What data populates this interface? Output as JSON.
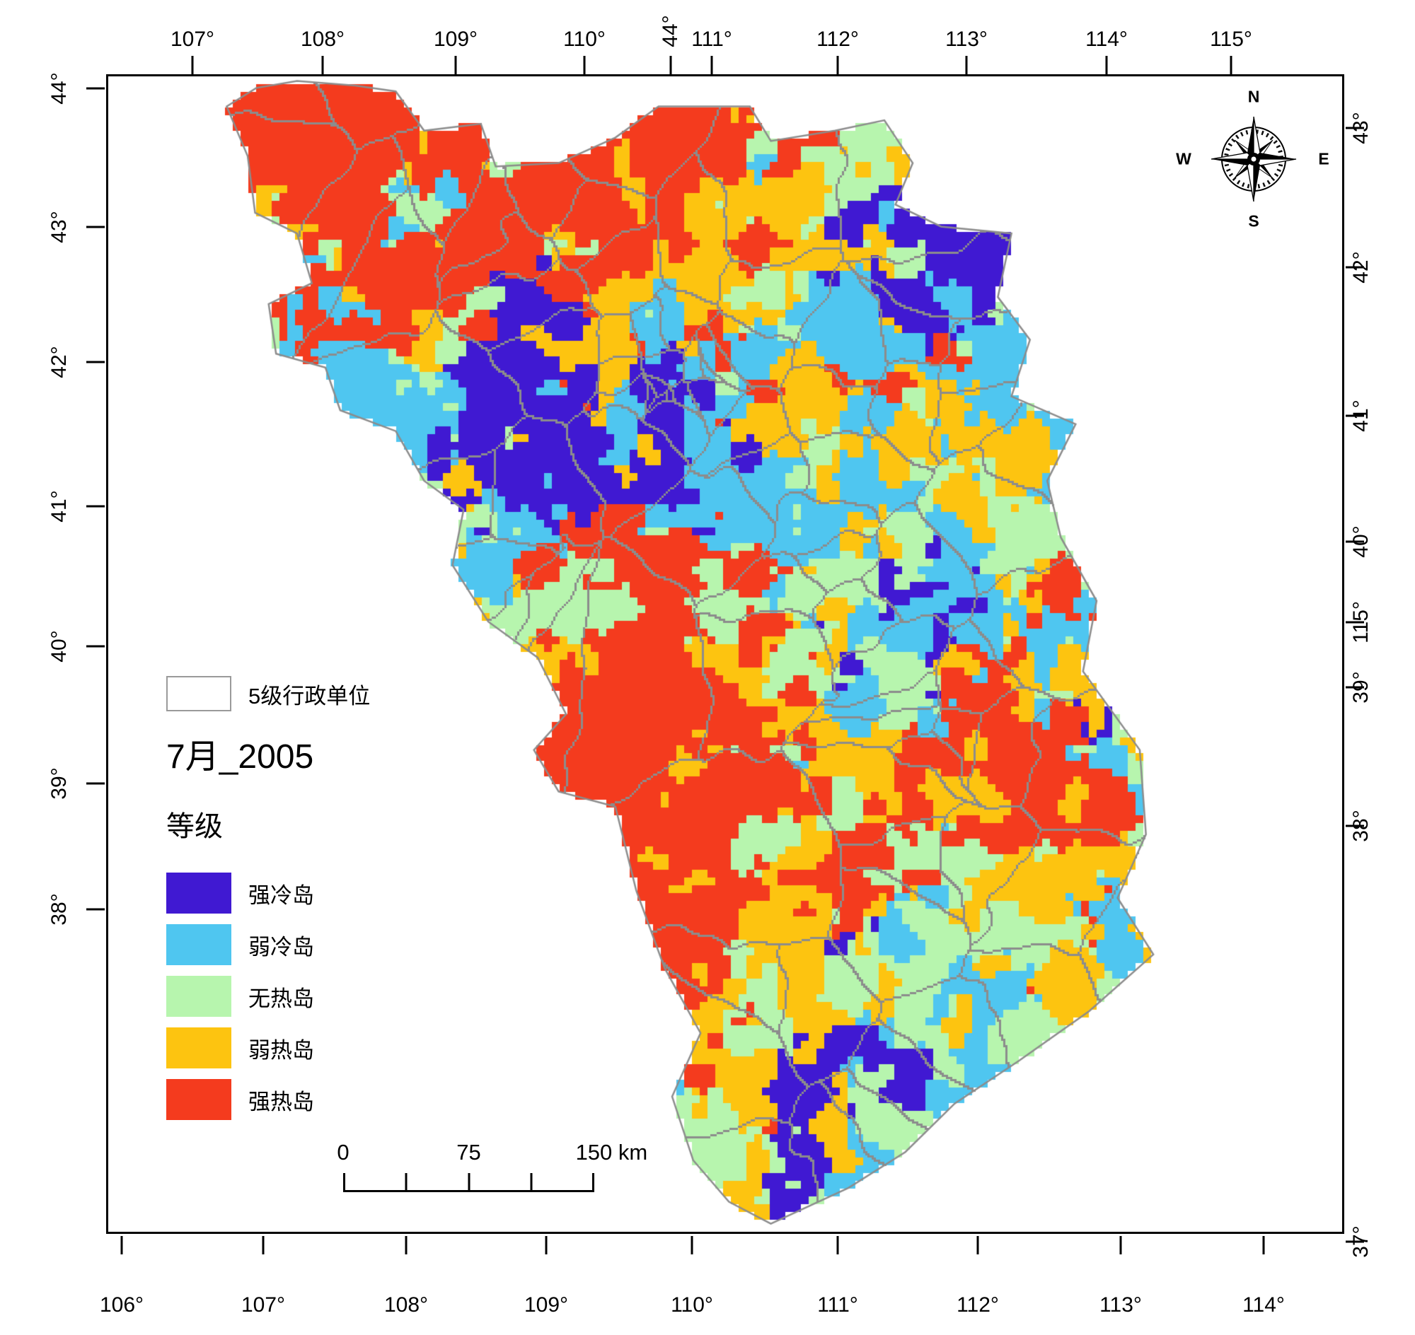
{
  "figure": {
    "background": "#ffffff",
    "frame_color": "#000000"
  },
  "north_arrow": {
    "n": "N",
    "e": "E",
    "s": "S",
    "w": "W"
  },
  "axes": {
    "top": [
      "107°",
      "108°",
      "109°",
      "110°",
      "44°",
      "111°",
      "112°",
      "113°",
      "114°",
      "115°"
    ],
    "bottom": [
      "106°",
      "107°",
      "108°",
      "109°",
      "110°",
      "111°",
      "112°",
      "113°",
      "114°"
    ],
    "left": [
      "44°",
      "43°",
      "42°",
      "41°",
      "40°",
      "39°",
      "38°"
    ],
    "right": [
      "43°",
      "42°",
      "41°",
      "40°",
      "115°",
      "39°",
      "38°",
      "37°"
    ]
  },
  "legend": {
    "admin_label": "5级行政单位",
    "title": "7月_2005",
    "subtitle": "等级",
    "classes": [
      {
        "label": "强冷岛",
        "color": "#4019d2"
      },
      {
        "label": "弱冷岛",
        "color": "#4fc6f0"
      },
      {
        "label": "无热岛",
        "color": "#b7f5ae"
      },
      {
        "label": "弱热岛",
        "color": "#fdc410"
      },
      {
        "label": "强热岛",
        "color": "#f43b1e"
      }
    ]
  },
  "scalebar": {
    "labels": [
      "0",
      "75",
      "150 km"
    ]
  },
  "map": {
    "boundary_color": "#8c8c8c",
    "base_weights": [
      0.5,
      1.0,
      1.25,
      1.2,
      0.85
    ],
    "outline": [
      [
        0.096,
        0.026
      ],
      [
        0.12,
        0.01
      ],
      [
        0.153,
        0.004
      ],
      [
        0.2,
        0.008
      ],
      [
        0.233,
        0.013
      ],
      [
        0.256,
        0.047
      ],
      [
        0.302,
        0.041
      ],
      [
        0.314,
        0.078
      ],
      [
        0.365,
        0.075
      ],
      [
        0.411,
        0.053
      ],
      [
        0.446,
        0.026
      ],
      [
        0.52,
        0.026
      ],
      [
        0.537,
        0.056
      ],
      [
        0.589,
        0.047
      ],
      [
        0.629,
        0.038
      ],
      [
        0.652,
        0.075
      ],
      [
        0.638,
        0.111
      ],
      [
        0.675,
        0.13
      ],
      [
        0.732,
        0.136
      ],
      [
        0.721,
        0.191
      ],
      [
        0.747,
        0.228
      ],
      [
        0.732,
        0.277
      ],
      [
        0.784,
        0.301
      ],
      [
        0.761,
        0.35
      ],
      [
        0.772,
        0.399
      ],
      [
        0.801,
        0.454
      ],
      [
        0.79,
        0.515
      ],
      [
        0.836,
        0.583
      ],
      [
        0.841,
        0.656
      ],
      [
        0.818,
        0.711
      ],
      [
        0.847,
        0.76
      ],
      [
        0.795,
        0.809
      ],
      [
        0.738,
        0.852
      ],
      [
        0.686,
        0.889
      ],
      [
        0.646,
        0.931
      ],
      [
        0.6,
        0.962
      ],
      [
        0.537,
        0.993
      ],
      [
        0.503,
        0.974
      ],
      [
        0.474,
        0.938
      ],
      [
        0.457,
        0.883
      ],
      [
        0.48,
        0.828
      ],
      [
        0.451,
        0.772
      ],
      [
        0.428,
        0.705
      ],
      [
        0.411,
        0.632
      ],
      [
        0.365,
        0.619
      ],
      [
        0.345,
        0.583
      ],
      [
        0.371,
        0.552
      ],
      [
        0.348,
        0.503
      ],
      [
        0.308,
        0.472
      ],
      [
        0.279,
        0.423
      ],
      [
        0.288,
        0.375
      ],
      [
        0.256,
        0.35
      ],
      [
        0.233,
        0.307
      ],
      [
        0.188,
        0.289
      ],
      [
        0.176,
        0.252
      ],
      [
        0.136,
        0.24
      ],
      [
        0.13,
        0.197
      ],
      [
        0.165,
        0.179
      ],
      [
        0.153,
        0.136
      ],
      [
        0.119,
        0.118
      ],
      [
        0.113,
        0.069
      ]
    ],
    "zones": [
      [
        0.25,
        0.07,
        0.15,
        4,
        2.2
      ],
      [
        0.17,
        0.05,
        0.1,
        4,
        5.0
      ],
      [
        0.1,
        0.11,
        0.06,
        4,
        4.0
      ],
      [
        0.27,
        0.09,
        0.09,
        4,
        4.2
      ],
      [
        0.37,
        0.06,
        0.08,
        4,
        3.8
      ],
      [
        0.33,
        0.14,
        0.07,
        4,
        3.0
      ],
      [
        0.45,
        0.11,
        0.07,
        4,
        2.8
      ],
      [
        0.52,
        0.06,
        0.05,
        4,
        2.4
      ],
      [
        0.22,
        0.17,
        0.06,
        4,
        2.4
      ],
      [
        0.3,
        0.18,
        0.1,
        3,
        2.2
      ],
      [
        0.45,
        0.16,
        0.09,
        3,
        2.4
      ],
      [
        0.56,
        0.12,
        0.07,
        3,
        2.0
      ],
      [
        0.14,
        0.18,
        0.05,
        3,
        2.0
      ],
      [
        0.56,
        0.05,
        0.045,
        2,
        2.2
      ],
      [
        0.63,
        0.09,
        0.05,
        2,
        1.8
      ],
      [
        0.38,
        0.19,
        0.05,
        2,
        1.6
      ],
      [
        0.52,
        0.18,
        0.06,
        2,
        1.7
      ],
      [
        0.19,
        0.23,
        0.06,
        1,
        2.1
      ],
      [
        0.16,
        0.21,
        0.05,
        2,
        1.9
      ],
      [
        0.665,
        0.165,
        0.055,
        0,
        6.0
      ],
      [
        0.71,
        0.145,
        0.035,
        0,
        4.0
      ],
      [
        0.6,
        0.2,
        0.05,
        1,
        2.4
      ],
      [
        0.71,
        0.21,
        0.05,
        1,
        2.4
      ],
      [
        0.745,
        0.26,
        0.04,
        1,
        2.0
      ],
      [
        0.64,
        0.25,
        0.04,
        4,
        2.2
      ],
      [
        0.57,
        0.295,
        0.035,
        4,
        2.0
      ],
      [
        0.66,
        0.32,
        0.06,
        3,
        2.2
      ],
      [
        0.71,
        0.3,
        0.05,
        2,
        1.8
      ],
      [
        0.335,
        0.245,
        0.05,
        0,
        4.5
      ],
      [
        0.405,
        0.27,
        0.05,
        0,
        4.5
      ],
      [
        0.295,
        0.325,
        0.05,
        0,
        4.2
      ],
      [
        0.255,
        0.375,
        0.045,
        0,
        4.5
      ],
      [
        0.44,
        0.335,
        0.055,
        0,
        4.2
      ],
      [
        0.505,
        0.35,
        0.04,
        0,
        3.2
      ],
      [
        0.375,
        0.3,
        0.04,
        0,
        3.0
      ],
      [
        0.35,
        0.295,
        0.09,
        1,
        2.3
      ],
      [
        0.245,
        0.28,
        0.06,
        1,
        2.2
      ],
      [
        0.475,
        0.3,
        0.07,
        1,
        2.0
      ],
      [
        0.555,
        0.385,
        0.06,
        1,
        2.4
      ],
      [
        0.61,
        0.345,
        0.05,
        1,
        2.0
      ],
      [
        0.3,
        0.42,
        0.05,
        1,
        2.0
      ],
      [
        0.375,
        0.4,
        0.07,
        2,
        2.3
      ],
      [
        0.495,
        0.42,
        0.07,
        2,
        2.1
      ],
      [
        0.285,
        0.215,
        0.05,
        2,
        1.7
      ],
      [
        0.555,
        0.44,
        0.05,
        2,
        2.0
      ],
      [
        0.425,
        0.215,
        0.06,
        3,
        2.1
      ],
      [
        0.53,
        0.27,
        0.05,
        3,
        1.8
      ],
      [
        0.33,
        0.36,
        0.05,
        3,
        1.6
      ],
      [
        0.455,
        0.255,
        0.022,
        4,
        2.6
      ],
      [
        0.49,
        0.235,
        0.018,
        4,
        2.0
      ],
      [
        0.52,
        0.3,
        0.03,
        4,
        1.8
      ],
      [
        0.405,
        0.455,
        0.065,
        4,
        4.2
      ],
      [
        0.465,
        0.5,
        0.065,
        4,
        4.6
      ],
      [
        0.415,
        0.555,
        0.055,
        4,
        4.2
      ],
      [
        0.375,
        0.605,
        0.05,
        4,
        3.6
      ],
      [
        0.525,
        0.55,
        0.045,
        4,
        3.0
      ],
      [
        0.495,
        0.445,
        0.04,
        4,
        3.0
      ],
      [
        0.345,
        0.5,
        0.07,
        3,
        2.5
      ],
      [
        0.53,
        0.465,
        0.06,
        3,
        2.2
      ],
      [
        0.465,
        0.6,
        0.06,
        3,
        2.2
      ],
      [
        0.56,
        0.6,
        0.05,
        3,
        2.0
      ],
      [
        0.585,
        0.5,
        0.05,
        2,
        2.0
      ],
      [
        0.625,
        0.565,
        0.06,
        2,
        2.2
      ],
      [
        0.31,
        0.455,
        0.045,
        2,
        1.8
      ],
      [
        0.63,
        0.465,
        0.042,
        0,
        5.0
      ],
      [
        0.665,
        0.515,
        0.045,
        1,
        2.5
      ],
      [
        0.6,
        0.43,
        0.045,
        1,
        2.0
      ],
      [
        0.685,
        0.47,
        0.035,
        1,
        2.0
      ],
      [
        0.72,
        0.595,
        0.045,
        4,
        3.2
      ],
      [
        0.665,
        0.665,
        0.04,
        4,
        2.6
      ],
      [
        0.775,
        0.62,
        0.04,
        4,
        2.6
      ],
      [
        0.73,
        0.55,
        0.04,
        4,
        2.2
      ],
      [
        0.745,
        0.68,
        0.07,
        3,
        2.5
      ],
      [
        0.7,
        0.56,
        0.05,
        3,
        2.0
      ],
      [
        0.79,
        0.73,
        0.05,
        3,
        2.2
      ],
      [
        0.72,
        0.76,
        0.06,
        2,
        2.2
      ],
      [
        0.78,
        0.78,
        0.045,
        1,
        2.0
      ],
      [
        0.425,
        0.675,
        0.05,
        4,
        4.2
      ],
      [
        0.45,
        0.74,
        0.05,
        4,
        4.2
      ],
      [
        0.48,
        0.8,
        0.04,
        4,
        3.2
      ],
      [
        0.435,
        0.855,
        0.035,
        4,
        2.8
      ],
      [
        0.52,
        0.69,
        0.04,
        4,
        2.5
      ],
      [
        0.525,
        0.73,
        0.055,
        3,
        2.3
      ],
      [
        0.565,
        0.82,
        0.055,
        3,
        2.3
      ],
      [
        0.5,
        0.89,
        0.05,
        3,
        2.1
      ],
      [
        0.6,
        0.76,
        0.045,
        3,
        2.0
      ],
      [
        0.555,
        0.775,
        0.045,
        2,
        2.0
      ],
      [
        0.605,
        0.88,
        0.055,
        2,
        2.2
      ],
      [
        0.525,
        0.95,
        0.05,
        2,
        2.1
      ],
      [
        0.645,
        0.79,
        0.04,
        2,
        1.8
      ],
      [
        0.655,
        0.815,
        0.05,
        1,
        2.6
      ],
      [
        0.71,
        0.83,
        0.045,
        1,
        2.2
      ],
      [
        0.615,
        0.945,
        0.04,
        1,
        2.2
      ],
      [
        0.69,
        0.75,
        0.035,
        1,
        1.8
      ],
      [
        0.585,
        0.845,
        0.045,
        0,
        5.0
      ],
      [
        0.625,
        0.875,
        0.035,
        0,
        3.5
      ],
      [
        0.565,
        0.955,
        0.028,
        0,
        3.0
      ],
      [
        0.335,
        0.6,
        0.018,
        0,
        2.5
      ]
    ]
  }
}
